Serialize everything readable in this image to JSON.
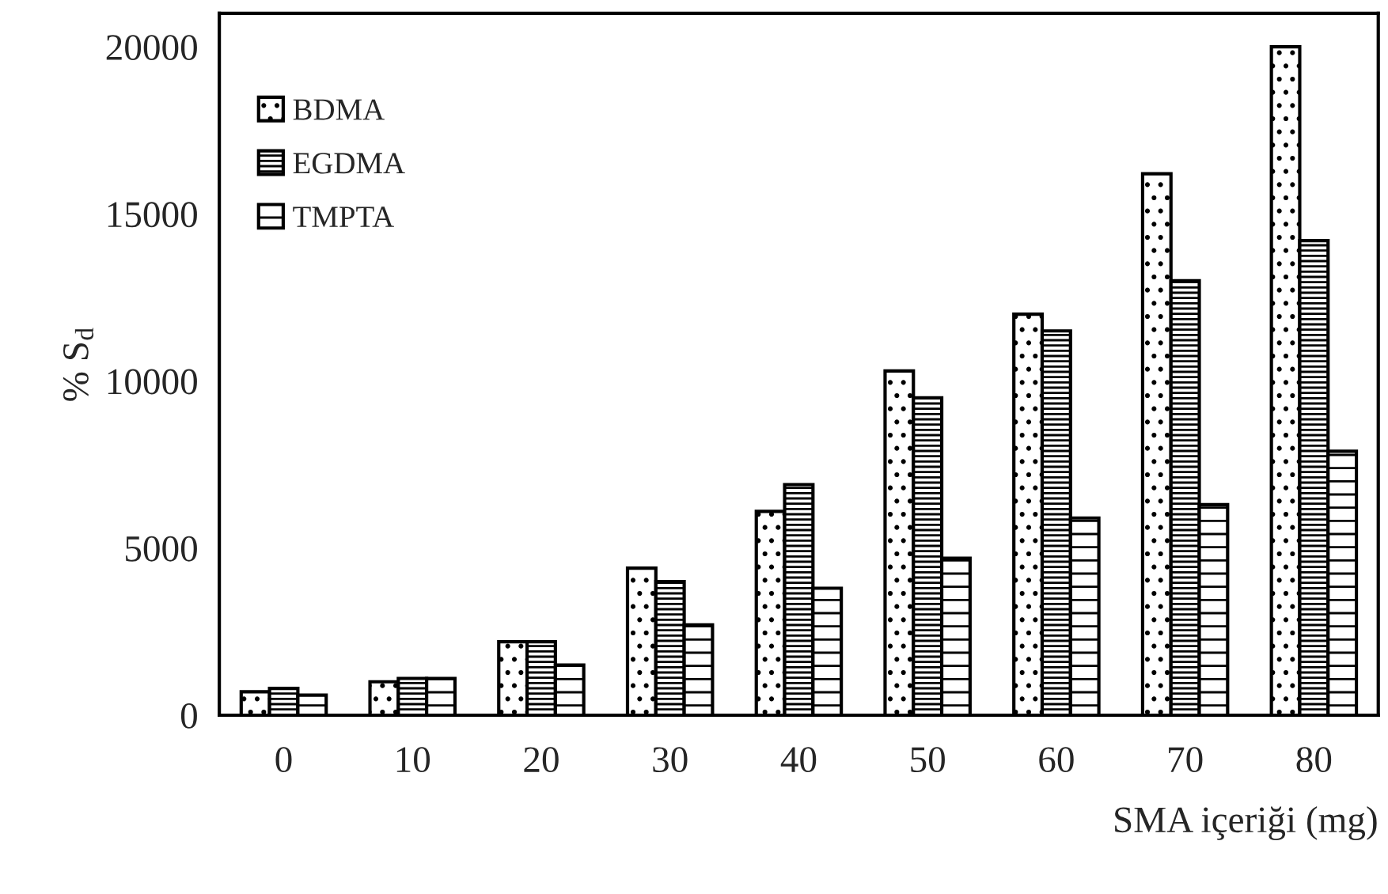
{
  "chart_data": {
    "type": "bar",
    "xlabel": "SMA içeriği (mg)",
    "ylabel": "% S$_{d}$",
    "categories": [
      "0",
      "10",
      "20",
      "30",
      "40",
      "50",
      "60",
      "70",
      "80"
    ],
    "series": [
      {
        "name": "BDMA",
        "color": "#000000",
        "values": [
          700,
          1000,
          2200,
          4400,
          6100,
          10300,
          12000,
          16200,
          20000
        ]
      },
      {
        "name": "EGDMA",
        "color": "#000000",
        "values": [
          800,
          1100,
          2200,
          4000,
          6900,
          9500,
          11500,
          13000,
          14200
        ]
      },
      {
        "name": "TMPTA",
        "color": "#000000",
        "values": [
          600,
          1100,
          1500,
          2700,
          3800,
          4700,
          5900,
          6300,
          7900
        ]
      }
    ],
    "ylim": [
      0,
      21000
    ],
    "yticks": [
      0,
      5000,
      10000,
      15000,
      20000
    ],
    "grid": false,
    "legend": "top left"
  }
}
